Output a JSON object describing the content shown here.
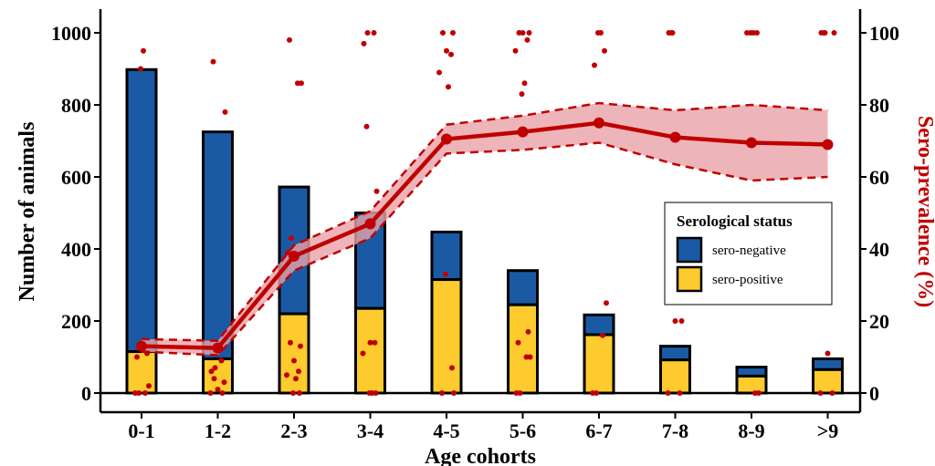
{
  "chart_data": {
    "type": "bar",
    "categories": [
      "0-1",
      "1-2",
      "2-3",
      "3-4",
      "4-5",
      "5-6",
      "6-7",
      "7-8",
      "8-9",
      ">9"
    ],
    "xlabel": "Age cohorts",
    "ylabel": "Number of animals",
    "y2label": "Sero-prevalence (%)",
    "ylim": [
      0,
      1000
    ],
    "y2lim": [
      0,
      100
    ],
    "yticks": [
      0,
      200,
      400,
      600,
      800,
      1000
    ],
    "y2ticks": [
      0,
      20,
      40,
      60,
      80,
      100
    ],
    "grid": false,
    "legend": {
      "title": "Serological status",
      "position": "right",
      "entries": [
        {
          "label": "sero-negative",
          "color": "#1a5aa5"
        },
        {
          "label": "sero-positive",
          "color": "#fdcb2d"
        }
      ]
    },
    "series": [
      {
        "name": "sero-positive",
        "type": "stacked-bar",
        "color": "#fdcb2d",
        "values": [
          115,
          95,
          220,
          235,
          315,
          245,
          162,
          92,
          47,
          65
        ]
      },
      {
        "name": "sero-negative",
        "type": "stacked-bar",
        "color": "#1a5aa5",
        "values": [
          783,
          630,
          352,
          265,
          132,
          95,
          55,
          38,
          25,
          30
        ]
      }
    ],
    "prevalence": {
      "color": "#c00000",
      "band_color": "#e8a3a8",
      "axis": "right",
      "values": [
        13,
        12.5,
        38,
        47,
        70.5,
        72.5,
        75,
        71,
        69.5,
        69
      ],
      "lower": [
        11.5,
        10.5,
        34,
        43,
        66.5,
        67.5,
        69.5,
        63.5,
        59,
        60
      ],
      "upper": [
        15,
        14.5,
        41,
        50.5,
        74.5,
        77,
        80.5,
        78.5,
        80,
        78.5
      ]
    },
    "individual_points": {
      "color": "#c00000",
      "axis": "right",
      "points": [
        [
          0,
          0
        ],
        [
          0,
          0
        ],
        [
          0,
          0
        ],
        [
          0,
          2
        ],
        [
          0,
          10
        ],
        [
          0,
          11
        ],
        [
          0,
          90
        ],
        [
          0,
          95
        ],
        [
          1,
          0
        ],
        [
          1,
          0
        ],
        [
          1,
          1
        ],
        [
          1,
          3
        ],
        [
          1,
          4
        ],
        [
          1,
          6
        ],
        [
          1,
          7
        ],
        [
          1,
          9
        ],
        [
          1,
          78
        ],
        [
          1,
          92
        ],
        [
          2,
          0
        ],
        [
          2,
          0
        ],
        [
          2,
          4
        ],
        [
          2,
          5
        ],
        [
          2,
          6
        ],
        [
          2,
          9
        ],
        [
          2,
          13
        ],
        [
          2,
          14
        ],
        [
          2,
          39
        ],
        [
          2,
          43
        ],
        [
          2,
          86
        ],
        [
          2,
          86
        ],
        [
          2,
          98
        ],
        [
          3,
          0
        ],
        [
          3,
          0
        ],
        [
          3,
          0
        ],
        [
          3,
          11
        ],
        [
          3,
          14
        ],
        [
          3,
          14
        ],
        [
          3,
          56
        ],
        [
          3,
          74
        ],
        [
          3,
          97
        ],
        [
          3,
          100
        ],
        [
          3,
          100
        ],
        [
          4,
          0
        ],
        [
          4,
          0
        ],
        [
          4,
          7
        ],
        [
          4,
          33
        ],
        [
          4,
          85
        ],
        [
          4,
          89
        ],
        [
          4,
          94
        ],
        [
          4,
          95
        ],
        [
          4,
          100
        ],
        [
          4,
          100
        ],
        [
          5,
          0
        ],
        [
          5,
          0
        ],
        [
          5,
          10
        ],
        [
          5,
          10
        ],
        [
          5,
          14
        ],
        [
          5,
          17
        ],
        [
          5,
          83
        ],
        [
          5,
          86
        ],
        [
          5,
          95
        ],
        [
          5,
          98
        ],
        [
          5,
          100
        ],
        [
          5,
          100
        ],
        [
          5,
          100
        ],
        [
          6,
          0
        ],
        [
          6,
          0
        ],
        [
          6,
          16
        ],
        [
          6,
          25
        ],
        [
          6,
          91
        ],
        [
          6,
          95
        ],
        [
          6,
          100
        ],
        [
          6,
          100
        ],
        [
          7,
          0
        ],
        [
          7,
          0
        ],
        [
          7,
          20
        ],
        [
          7,
          20
        ],
        [
          7,
          100
        ],
        [
          7,
          100
        ],
        [
          7,
          100
        ],
        [
          8,
          0
        ],
        [
          8,
          0
        ],
        [
          8,
          100
        ],
        [
          8,
          100
        ],
        [
          8,
          100
        ],
        [
          8,
          100
        ],
        [
          9,
          0
        ],
        [
          9,
          0
        ],
        [
          9,
          11
        ],
        [
          9,
          100
        ],
        [
          9,
          100
        ],
        [
          9,
          100
        ],
        [
          9,
          100
        ]
      ]
    }
  }
}
